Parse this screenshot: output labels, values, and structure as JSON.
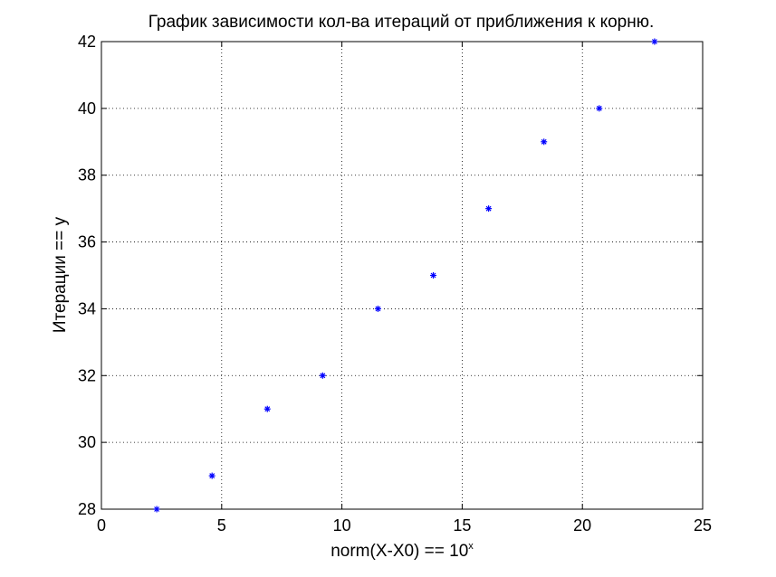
{
  "chart_data": {
    "type": "scatter",
    "title": "График зависимости кол-ва итераций от приближения к корню.",
    "xlabel": "norm(X-X0) == 10",
    "xlabel_superscript": "x",
    "ylabel": "Итерации == y",
    "xlim": [
      0,
      25
    ],
    "ylim": [
      28,
      42
    ],
    "xticks": [
      0,
      5,
      10,
      15,
      20,
      25
    ],
    "yticks": [
      28,
      30,
      32,
      34,
      36,
      38,
      40,
      42
    ],
    "grid": true,
    "marker": "asterisk",
    "color": "#0000ff",
    "x": [
      2.3,
      4.6,
      6.9,
      9.2,
      11.5,
      13.8,
      16.1,
      18.4,
      20.7,
      23.0
    ],
    "y": [
      28,
      29,
      31,
      32,
      34,
      35,
      37,
      39,
      40,
      42
    ]
  }
}
